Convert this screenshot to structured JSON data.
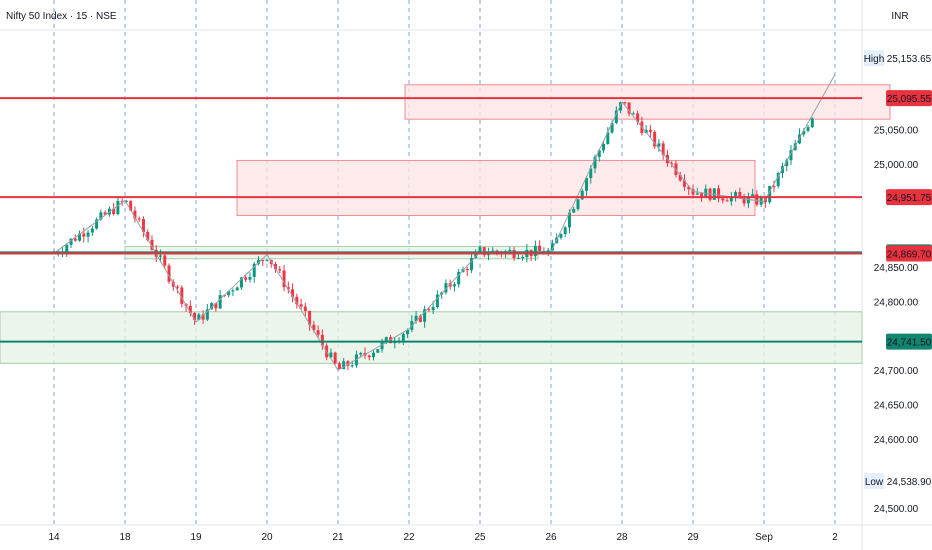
{
  "chart_data": {
    "type": "candlestick",
    "title": "Nifty 50 Index · 15 · NSE",
    "currency": "INR",
    "y_ticks": [
      25050,
      25000,
      24850,
      24800,
      24700,
      24650,
      24600,
      24500
    ],
    "y_tick_labels": [
      "25,050.00",
      "25,000.00",
      "24,850.00",
      "24,800.00",
      "24,700.00",
      "24,650.00",
      "24,600.00",
      "24,500.00"
    ],
    "ylim": [
      24475,
      25183
    ],
    "x_ticks": [
      "14",
      "18",
      "19",
      "20",
      "21",
      "22",
      "25",
      "26",
      "28",
      "29",
      "Sep",
      "2"
    ],
    "high": {
      "label": "High",
      "value": "25,153.65"
    },
    "low": {
      "label": "Low",
      "value": "24,538.90"
    },
    "horizontal_levels": [
      {
        "value": 25095.55,
        "label": "25,095.55",
        "color": "#e8333f"
      },
      {
        "value": 24951.75,
        "label": "24,951.75",
        "color": "#e8333f"
      },
      {
        "value": 24871.4,
        "label": "24,871.40",
        "color": "#10856f"
      },
      {
        "value": 24869.7,
        "label": "24,869.70",
        "color": "#e8333f"
      },
      {
        "value": 24741.5,
        "label": "24,741.50",
        "color": "#10856f"
      }
    ],
    "zones": [
      {
        "kind": "resistance",
        "from": 25065,
        "to": 25115
      },
      {
        "kind": "resistance",
        "from": 24925,
        "to": 25005
      },
      {
        "kind": "support",
        "from": 24862,
        "to": 24880
      },
      {
        "kind": "support",
        "from": 24710,
        "to": 24785
      }
    ],
    "path_points": [
      {
        "day": 0,
        "value": 24870
      },
      {
        "day": 1,
        "value": 24947
      },
      {
        "day": 2,
        "value": 24770
      },
      {
        "day": 3,
        "value": 24868
      },
      {
        "day": 4,
        "value": 24700
      },
      {
        "day": 5,
        "value": 24760
      },
      {
        "day": 6,
        "value": 24872
      },
      {
        "day": 7,
        "value": 24872
      },
      {
        "day": 8,
        "value": 25090
      },
      {
        "day": 9,
        "value": 24960
      },
      {
        "day": 10,
        "value": 24945
      },
      {
        "day": 11,
        "value": 25130
      }
    ],
    "colors": {
      "up": "#089981",
      "down": "#f23645",
      "resistance_zone": "#f7c8cc",
      "support_zone": "#d7ecd8"
    }
  }
}
